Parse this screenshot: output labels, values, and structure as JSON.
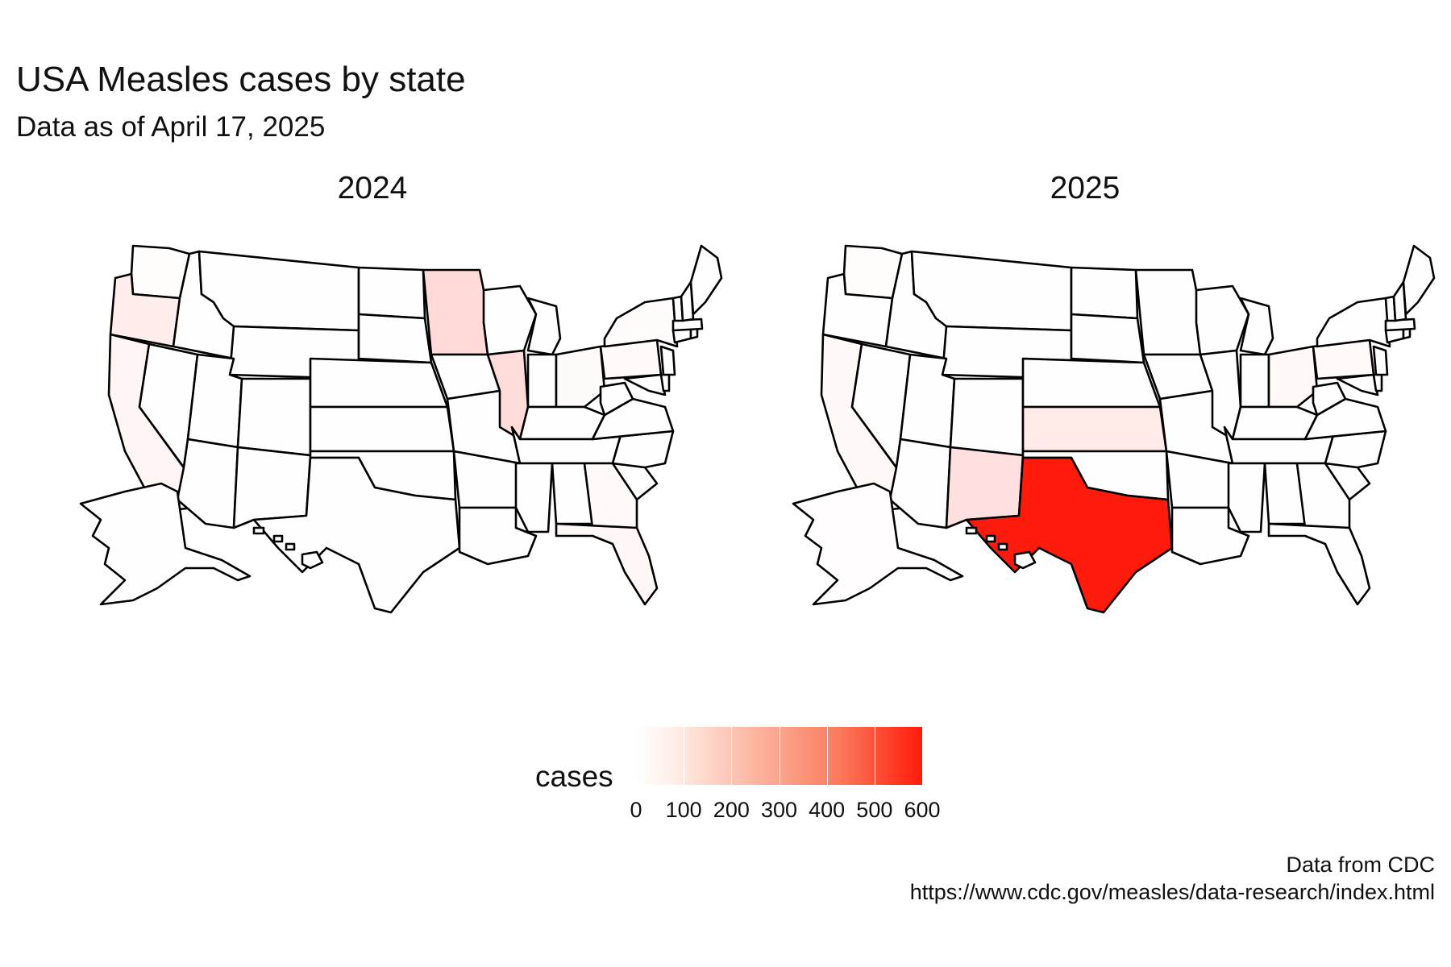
{
  "title": "USA Measles cases by state",
  "subtitle": "Data as of April 17, 2025",
  "legend": {
    "title": "cases",
    "ticks": [
      "0",
      "100",
      "200",
      "300",
      "400",
      "500",
      "600"
    ],
    "range": [
      0,
      600
    ],
    "low_color": "#ffffff",
    "high_color": "#ff1a0a"
  },
  "caption": {
    "line1": "Data from CDC",
    "line2": "https://www.cdc.gov/measles/data-research/index.html"
  },
  "chart_data": [
    {
      "type": "choropleth",
      "facet": "2024",
      "fill_scale": "cases",
      "values": {
        "WA": 4,
        "OR": 31,
        "CA": 15,
        "MN": 70,
        "IL": 67,
        "GA": 7,
        "FL": 12,
        "PA": 8,
        "OH": 6,
        "NY": 5,
        "AK": 1
      }
    },
    {
      "type": "choropleth",
      "facet": "2025",
      "fill_scale": "cases",
      "values": {
        "TX": 597,
        "NM": 57,
        "KS": 37,
        "OH": 10,
        "CA": 10,
        "PA": 7,
        "WA": 4,
        "AK": 2
      }
    }
  ]
}
